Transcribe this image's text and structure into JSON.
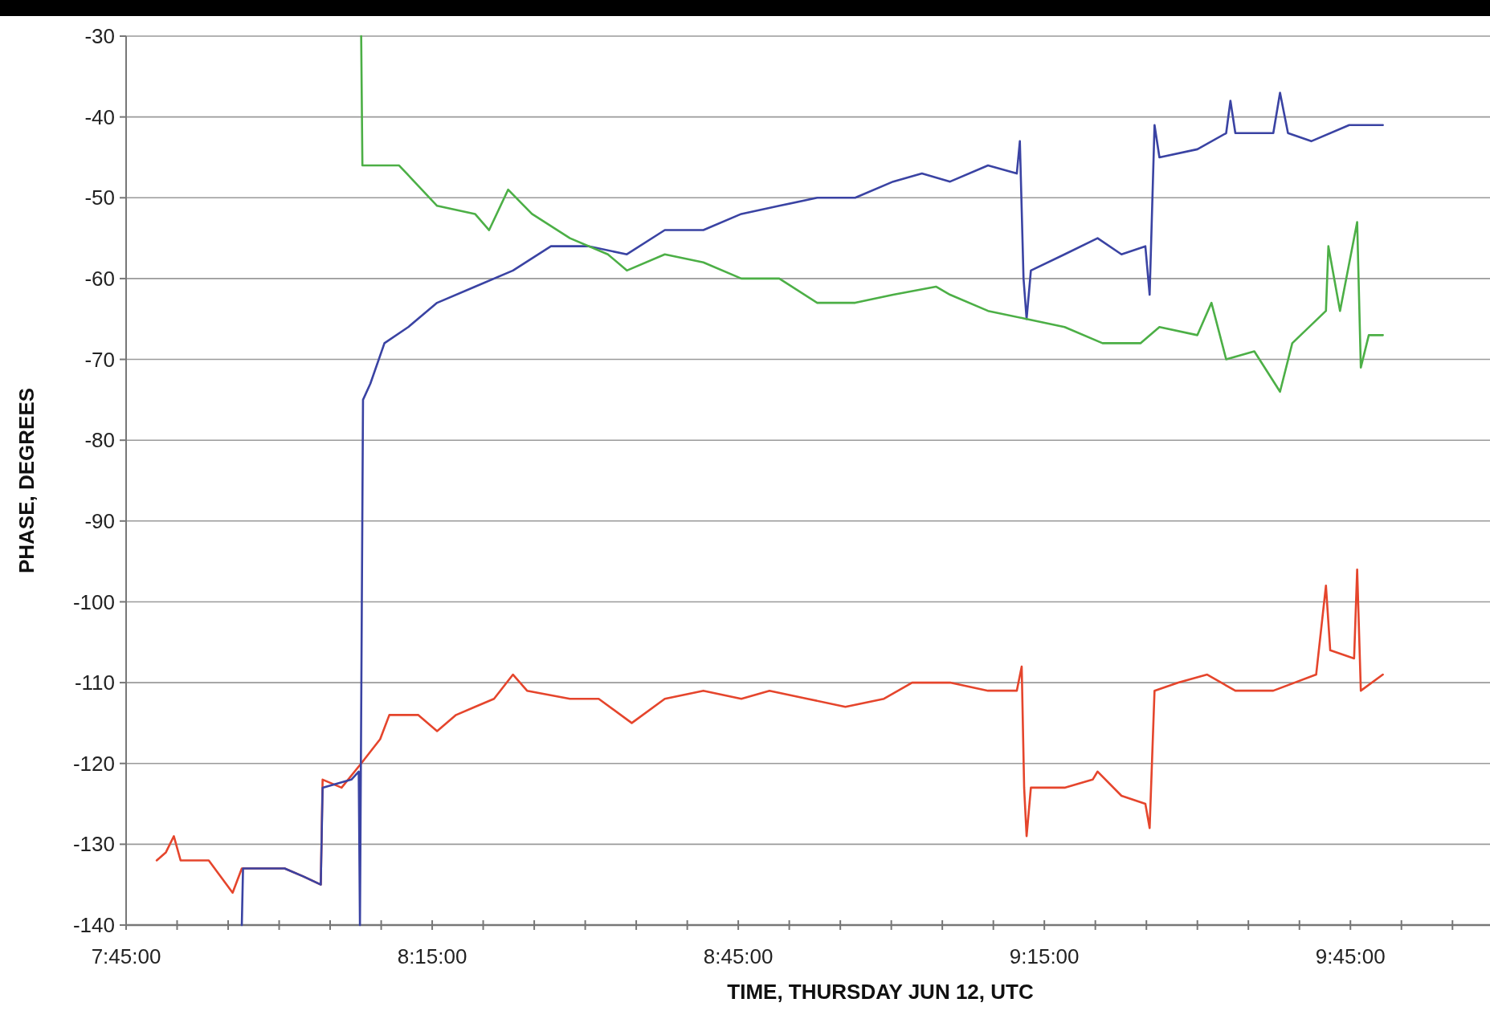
{
  "chart_data": {
    "type": "line",
    "xlabel": "TIME, THURSDAY JUN 12, UTC",
    "ylabel": "PHASE, DEGREES",
    "xlim": [
      7.75,
      9.978
    ],
    "xticks": [
      {
        "value": 7.75,
        "label": "7:45:00"
      },
      {
        "value": 7.8333,
        "label": null
      },
      {
        "value": 7.9167,
        "label": null
      },
      {
        "value": 8,
        "label": null
      },
      {
        "value": 8.0833,
        "label": null
      },
      {
        "value": 8.1667,
        "label": null
      },
      {
        "value": 8.25,
        "label": "8:15:00"
      },
      {
        "value": 8.3333,
        "label": null
      },
      {
        "value": 8.4167,
        "label": null
      },
      {
        "value": 8.5,
        "label": null
      },
      {
        "value": 8.5833,
        "label": null
      },
      {
        "value": 8.6667,
        "label": null
      },
      {
        "value": 8.75,
        "label": "8:45:00"
      },
      {
        "value": 8.8333,
        "label": null
      },
      {
        "value": 8.9167,
        "label": null
      },
      {
        "value": 9,
        "label": null
      },
      {
        "value": 9.0833,
        "label": null
      },
      {
        "value": 9.1667,
        "label": null
      },
      {
        "value": 9.25,
        "label": "9:15:00"
      },
      {
        "value": 9.3333,
        "label": null
      },
      {
        "value": 9.4167,
        "label": null
      },
      {
        "value": 9.5,
        "label": null
      },
      {
        "value": 9.5833,
        "label": null
      },
      {
        "value": 9.6667,
        "label": null
      },
      {
        "value": 9.75,
        "label": "9:45:00"
      },
      {
        "value": 9.8333,
        "label": null
      },
      {
        "value": 9.9167,
        "label": null
      }
    ],
    "ylim": [
      -140,
      -30
    ],
    "yticks": [
      -140,
      -130,
      -120,
      -110,
      -100,
      -90,
      -80,
      -70,
      -60,
      -50,
      -40,
      -30
    ],
    "grid": "y",
    "marker": "none",
    "line_style": "solid",
    "series": [
      {
        "color": "#e5452c",
        "x": [
          7.8,
          7.815,
          7.828,
          7.839,
          7.885,
          7.924,
          7.939,
          8.009,
          8.04,
          8.068,
          8.071,
          8.102,
          8.134,
          8.165,
          8.18,
          8.227,
          8.258,
          8.289,
          8.32,
          8.351,
          8.382,
          8.405,
          8.475,
          8.522,
          8.576,
          8.63,
          8.693,
          8.755,
          8.801,
          8.863,
          8.925,
          8.988,
          9.034,
          9.096,
          9.158,
          9.205,
          9.213,
          9.217,
          9.221,
          9.228,
          9.283,
          9.329,
          9.337,
          9.376,
          9.415,
          9.422,
          9.43,
          9.469,
          9.516,
          9.562,
          9.624,
          9.694,
          9.71,
          9.717,
          9.756,
          9.761,
          9.767,
          9.803
        ],
        "values": [
          -132,
          -131,
          -129,
          -132,
          -132,
          -136,
          -133,
          -133,
          -134,
          -135,
          -122,
          -123,
          -120,
          -117,
          -114,
          -114,
          -116,
          -114,
          -113,
          -112,
          -109,
          -111,
          -112,
          -112,
          -115,
          -112,
          -111,
          -112,
          -111,
          -112,
          -113,
          -112,
          -110,
          -110,
          -111,
          -111,
          -108,
          -123,
          -129,
          -123,
          -123,
          -122,
          -121,
          -124,
          -125,
          -128,
          -111,
          -110,
          -109,
          -111,
          -111,
          -109,
          -98,
          -106,
          -107,
          -96,
          -111,
          -109
        ]
      },
      {
        "color": "#3a43a3",
        "x": [
          7.939,
          7.941,
          7.944,
          8.009,
          8.04,
          8.068,
          8.071,
          8.118,
          8.13,
          8.132,
          8.137,
          8.149,
          8.172,
          8.211,
          8.258,
          8.32,
          8.382,
          8.444,
          8.506,
          8.568,
          8.63,
          8.693,
          8.755,
          8.817,
          8.879,
          8.941,
          9.003,
          9.05,
          9.096,
          9.158,
          9.205,
          9.21,
          9.216,
          9.221,
          9.228,
          9.283,
          9.337,
          9.376,
          9.415,
          9.422,
          9.43,
          9.438,
          9.5,
          9.547,
          9.554,
          9.562,
          9.624,
          9.635,
          9.648,
          9.686,
          9.748,
          9.803
        ],
        "values": [
          -140,
          -133,
          -133,
          -133,
          -134,
          -135,
          -123,
          -122,
          -121,
          -140,
          -75,
          -73,
          -68,
          -66,
          -63,
          -61,
          -59,
          -56,
          -56,
          -57,
          -54,
          -54,
          -52,
          -51,
          -50,
          -50,
          -48,
          -47,
          -48,
          -46,
          -47,
          -43,
          -60,
          -65,
          -59,
          -57,
          -55,
          -57,
          -56,
          -62,
          -41,
          -45,
          -44,
          -42,
          -38,
          -42,
          -42,
          -37,
          -42,
          -43,
          -41,
          -41
        ]
      },
      {
        "color": "#4caf46",
        "x": [
          8.134,
          8.136,
          8.137,
          8.196,
          8.258,
          8.32,
          8.343,
          8.374,
          8.413,
          8.475,
          8.537,
          8.568,
          8.63,
          8.693,
          8.755,
          8.817,
          8.879,
          8.941,
          9.003,
          9.073,
          9.096,
          9.158,
          9.221,
          9.283,
          9.345,
          9.407,
          9.438,
          9.5,
          9.523,
          9.547,
          9.593,
          9.635,
          9.655,
          9.71,
          9.714,
          9.733,
          9.761,
          9.767,
          9.78,
          9.803
        ],
        "values": [
          -30,
          -46,
          -46,
          -46,
          -51,
          -52,
          -54,
          -49,
          -52,
          -55,
          -57,
          -59,
          -57,
          -58,
          -60,
          -60,
          -63,
          -63,
          -62,
          -61,
          -62,
          -64,
          -65,
          -66,
          -68,
          -68,
          -66,
          -67,
          -63,
          -70,
          -69,
          -74,
          -68,
          -64,
          -56,
          -64,
          -53,
          -71,
          -67,
          -67
        ]
      }
    ]
  }
}
